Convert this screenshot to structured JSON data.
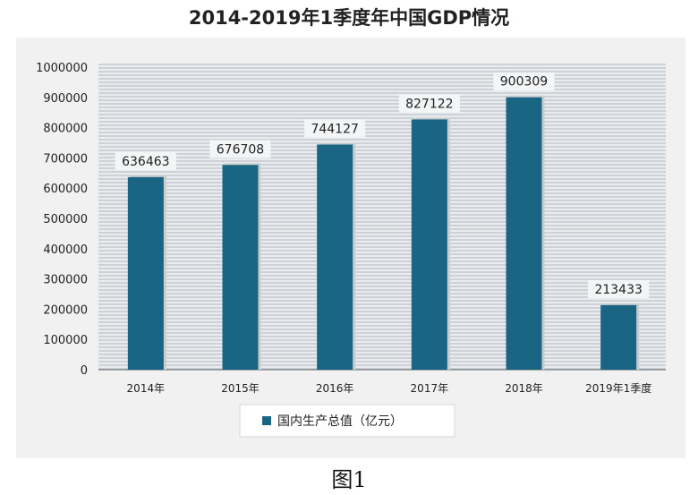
{
  "chart_data": {
    "type": "bar",
    "title": "2014-2019年1季度年中国GDP情况",
    "categories": [
      "2014年",
      "2015年",
      "2016年",
      "2017年",
      "2018年",
      "2019年1季度"
    ],
    "series": [
      {
        "name": "国内生产总值（亿元）",
        "values": [
          636463,
          676708,
          744127,
          827122,
          900309,
          213433
        ]
      }
    ],
    "data_labels": [
      "636463",
      "676708",
      "744127",
      "827122",
      "900309",
      "213433"
    ],
    "y_ticks": [
      "0",
      "100000",
      "200000",
      "300000",
      "400000",
      "500000",
      "600000",
      "700000",
      "800000",
      "900000",
      "1000000"
    ],
    "ylim": [
      0,
      1000000
    ],
    "grid": true,
    "legend_position": "bottom",
    "colors": {
      "bar": "#1b6584",
      "grid": "#b4b9bd",
      "plot_bg": "#e9ecee",
      "panel_bg": "#f1f1f1"
    }
  },
  "figure": {
    "caption": "图1"
  }
}
